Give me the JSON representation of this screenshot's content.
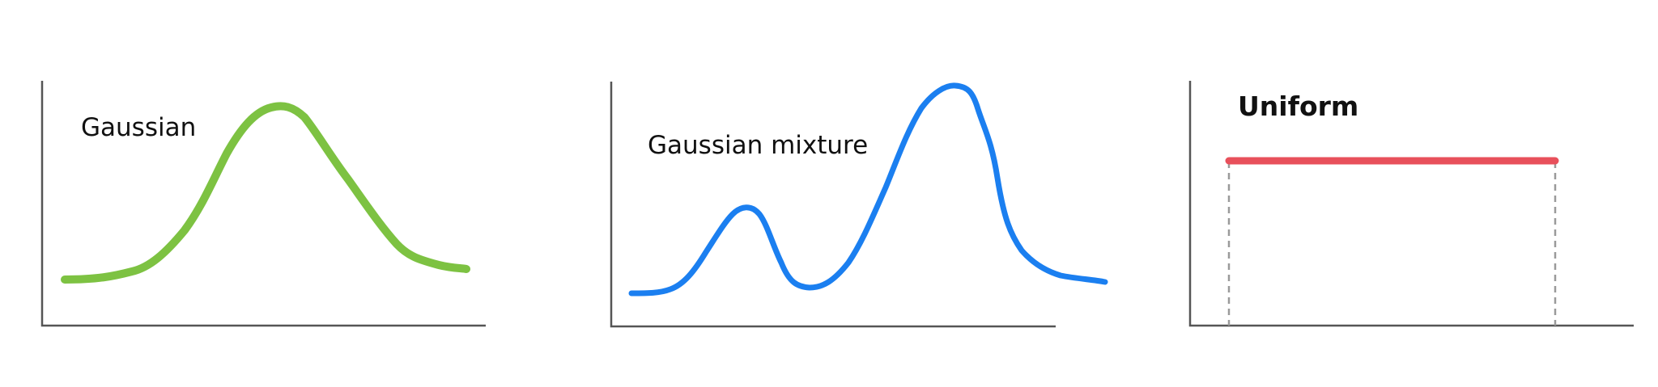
{
  "panels": [
    {
      "label": "Gaussian",
      "color": "#7dc242"
    },
    {
      "label": "Gaussian mixture",
      "color": "#1b7ff0"
    },
    {
      "label": "Uniform",
      "color": "#e8505b"
    }
  ],
  "axis_color": "#555555",
  "guide_color": "#9a9a9a"
}
